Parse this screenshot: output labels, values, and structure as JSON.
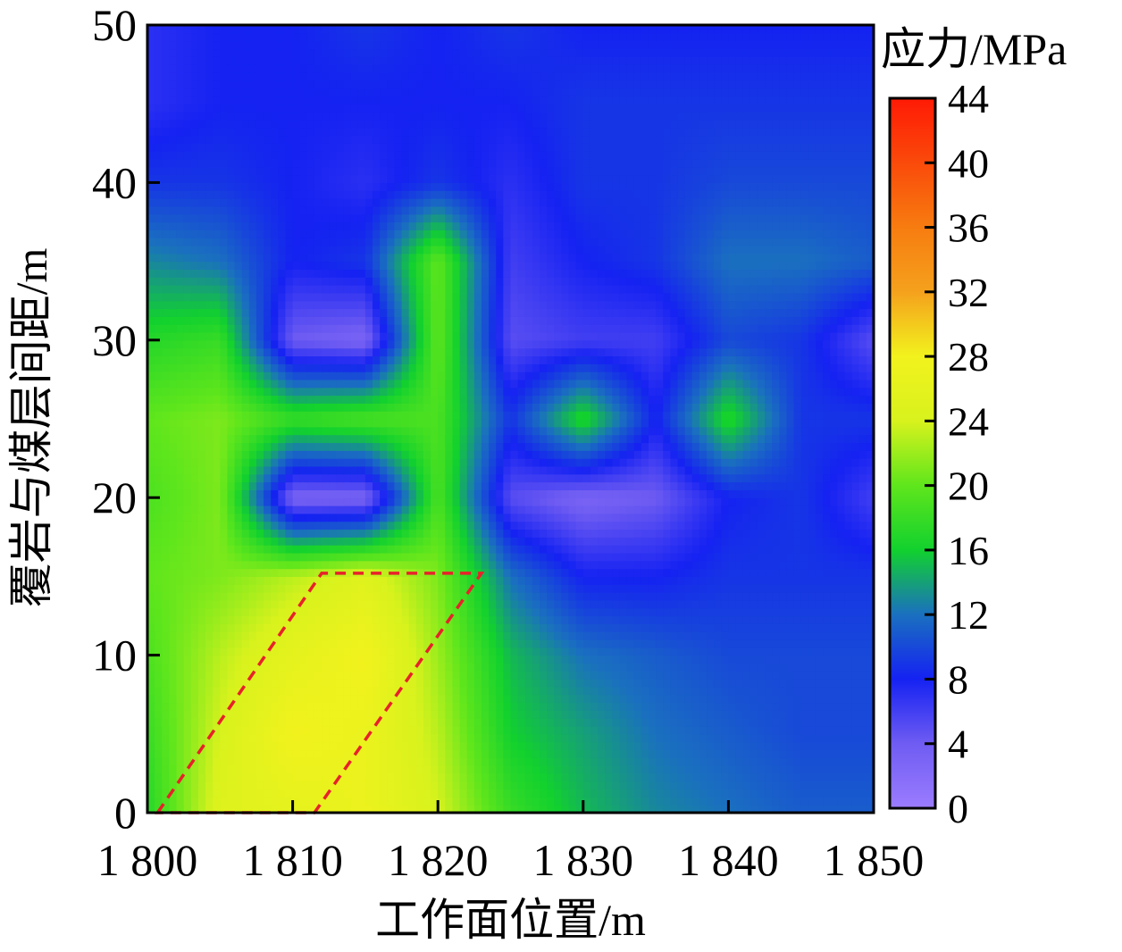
{
  "chart_data": {
    "type": "heatmap",
    "xlabel": "工作面位置/m",
    "ylabel": "覆岩与煤层间距/m",
    "colorbar_title": "应力/MPa",
    "x_range": [
      1800,
      1850
    ],
    "y_range": [
      0,
      50
    ],
    "x_ticks": [
      1800,
      1810,
      1820,
      1830,
      1840,
      1850
    ],
    "x_tick_labels": [
      "1 800",
      "1 810",
      "1 820",
      "1 830",
      "1 840",
      "1 850"
    ],
    "y_ticks": [
      0,
      10,
      20,
      30,
      40,
      50
    ],
    "y_tick_labels": [
      "0",
      "10",
      "20",
      "30",
      "40",
      "50"
    ],
    "color_range": [
      0,
      44
    ],
    "colorbar_ticks": [
      0,
      4,
      8,
      12,
      16,
      20,
      24,
      28,
      32,
      36,
      40,
      44
    ],
    "colorbar_tick_labels": [
      "0",
      "4",
      "8",
      "12",
      "16",
      "20",
      "24",
      "28",
      "32",
      "36",
      "40",
      "44"
    ],
    "colorscale": [
      {
        "v": 0,
        "color": "#9b7cff"
      },
      {
        "v": 4,
        "color": "#6f5cf2"
      },
      {
        "v": 8,
        "color": "#1522f2"
      },
      {
        "v": 12,
        "color": "#1a70bf"
      },
      {
        "v": 16,
        "color": "#12d12e"
      },
      {
        "v": 20,
        "color": "#5fe61c"
      },
      {
        "v": 24,
        "color": "#d8f21d"
      },
      {
        "v": 28,
        "color": "#f2f21d"
      },
      {
        "v": 32,
        "color": "#f5a11d"
      },
      {
        "v": 36,
        "color": "#f77c10"
      },
      {
        "v": 40,
        "color": "#fa4a0a"
      },
      {
        "v": 44,
        "color": "#ff1a05"
      }
    ],
    "grid_x": [
      1800,
      1805,
      1810,
      1815,
      1820,
      1825,
      1830,
      1835,
      1840,
      1845,
      1850
    ],
    "grid_y": [
      0,
      5,
      10,
      15,
      20,
      25,
      30,
      35,
      40,
      45,
      50
    ],
    "z": [
      [
        17,
        25,
        26,
        27,
        24,
        18,
        15,
        13,
        12,
        11,
        11
      ],
      [
        18,
        24,
        28,
        27,
        23,
        16,
        14,
        12,
        11,
        10,
        10
      ],
      [
        19,
        23,
        26,
        28,
        22,
        15,
        12,
        11,
        10,
        10,
        10
      ],
      [
        20,
        21,
        23,
        25,
        21,
        12,
        8,
        8,
        9,
        9,
        9
      ],
      [
        19,
        21,
        3,
        3,
        19,
        5,
        3,
        4,
        8,
        9,
        6
      ],
      [
        20,
        21,
        18,
        19,
        19,
        9,
        17,
        8,
        17,
        9,
        9
      ],
      [
        17,
        18,
        4,
        3,
        20,
        5,
        6,
        6,
        10,
        9,
        5
      ],
      [
        13,
        12,
        8,
        9,
        20,
        6,
        8,
        9,
        12,
        12,
        11
      ],
      [
        9,
        9,
        8,
        7,
        9,
        7,
        9,
        9,
        10,
        10,
        10
      ],
      [
        7,
        8,
        8,
        8,
        8,
        8,
        9,
        9,
        9,
        9,
        9
      ],
      [
        7,
        8,
        8,
        9,
        8,
        9,
        8,
        8,
        8,
        8,
        8
      ]
    ],
    "annotation": {
      "type": "dashed-parallelogram",
      "color": "#e8212a",
      "points": [
        [
          1800.7,
          0
        ],
        [
          1812,
          15.2
        ],
        [
          1823,
          15.2
        ],
        [
          1811.5,
          0
        ]
      ]
    },
    "grid": false
  }
}
